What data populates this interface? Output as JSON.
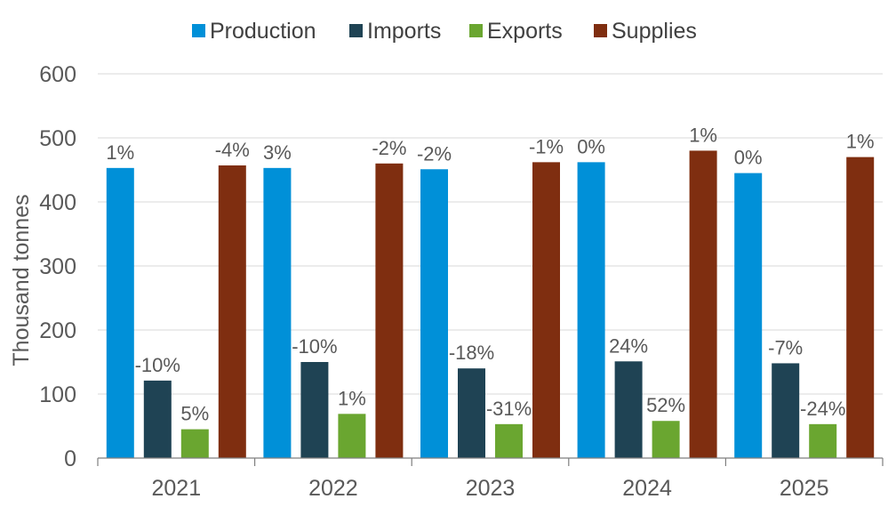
{
  "chart_data": {
    "type": "bar",
    "categories": [
      "2021",
      "2022",
      "2023",
      "2024",
      "2025"
    ],
    "ylabel": "Thousand tonnes",
    "xlabel": "",
    "ylim": [
      0,
      600
    ],
    "yticks": [
      0,
      100,
      200,
      300,
      400,
      500,
      600
    ],
    "grid": true,
    "legend_position": "top",
    "series": [
      {
        "name": "Production",
        "color": "#0090D8",
        "values": [
          453,
          453,
          451,
          462,
          445
        ],
        "labels": [
          "1%",
          "3%",
          "-2%",
          "0%",
          "0%"
        ]
      },
      {
        "name": "Imports",
        "color": "#1F4354",
        "values": [
          121,
          150,
          140,
          151,
          148
        ],
        "labels": [
          "-10%",
          "-10%",
          "-18%",
          "24%",
          "-7%"
        ]
      },
      {
        "name": "Exports",
        "color": "#6AA630",
        "values": [
          45,
          69,
          53,
          58,
          53
        ],
        "labels": [
          "5%",
          "1%",
          "-31%",
          "52%",
          "-24%"
        ]
      },
      {
        "name": "Supplies",
        "color": "#7F2E10",
        "values": [
          457,
          460,
          462,
          480,
          470
        ],
        "labels": [
          "-4%",
          "-2%",
          "-1%",
          "1%",
          "1%"
        ]
      }
    ]
  }
}
